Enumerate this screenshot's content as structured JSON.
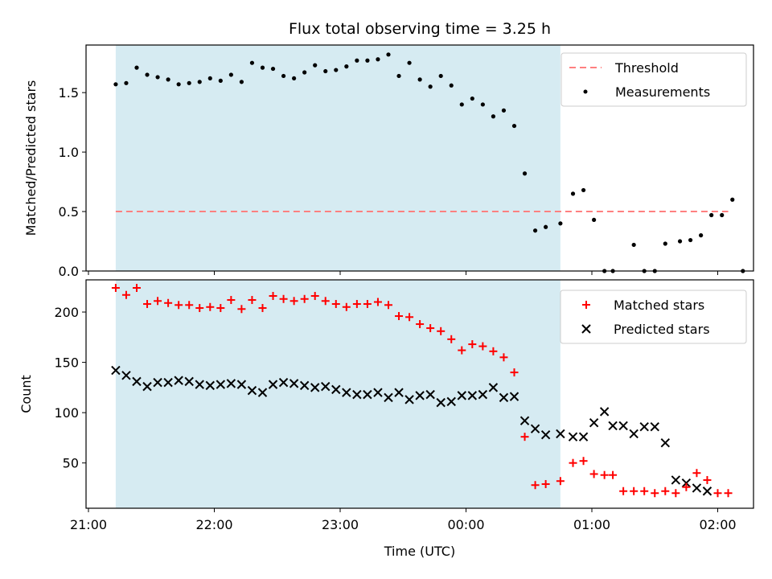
{
  "chart_data": [
    {
      "type": "scatter",
      "title": "Flux total observing time = 3.25 h",
      "xlabel": "",
      "ylabel": "Matched/Predicted stars",
      "ylim": [
        0,
        1.9
      ],
      "yticks": [
        0.0,
        0.5,
        1.0,
        1.5
      ],
      "ytick_labels": [
        "0.0",
        "0.5",
        "1.0",
        "1.5"
      ],
      "x_tick_labels": [],
      "legend": {
        "placement": "top-right"
      },
      "shaded_span": {
        "from": "21:13",
        "to": "00:45",
        "color": "#add8e6"
      },
      "threshold": {
        "name": "Threshold",
        "y": 0.5,
        "from": "21:13",
        "to": "02:05",
        "color": "#ff8080"
      },
      "series": [
        {
          "name": "Measurements",
          "color": "#000000",
          "x": [
            "21:13",
            "21:18",
            "21:23",
            "21:28",
            "21:33",
            "21:38",
            "21:43",
            "21:48",
            "21:53",
            "21:58",
            "22:03",
            "22:08",
            "22:13",
            "22:18",
            "22:23",
            "22:28",
            "22:33",
            "22:38",
            "22:43",
            "22:48",
            "22:53",
            "22:58",
            "23:03",
            "23:08",
            "23:13",
            "23:18",
            "23:23",
            "23:28",
            "23:33",
            "23:38",
            "23:43",
            "23:48",
            "23:53",
            "23:58",
            "00:03",
            "00:08",
            "00:13",
            "00:18",
            "00:23",
            "00:28",
            "00:33",
            "00:38",
            "00:45",
            "00:51",
            "00:56",
            "01:01",
            "01:06",
            "01:10",
            "01:20",
            "01:25",
            "01:30",
            "01:35",
            "01:42",
            "01:47",
            "01:52",
            "01:57",
            "02:02",
            "02:07",
            "02:12",
            "02:17",
            "02:22"
          ],
          "values": [
            1.57,
            1.58,
            1.71,
            1.65,
            1.63,
            1.61,
            1.57,
            1.58,
            1.59,
            1.62,
            1.6,
            1.65,
            1.59,
            1.75,
            1.71,
            1.7,
            1.64,
            1.62,
            1.67,
            1.73,
            1.68,
            1.69,
            1.72,
            1.77,
            1.77,
            1.78,
            1.82,
            1.64,
            1.75,
            1.61,
            1.55,
            1.64,
            1.56,
            1.4,
            1.45,
            1.4,
            1.3,
            1.35,
            1.22,
            0.82,
            0.34,
            0.37,
            0.4,
            0.65,
            0.68,
            0.43,
            0.0,
            0.0,
            0.22,
            0.0,
            0.0,
            0.23,
            0.25,
            0.26,
            0.3,
            0.47,
            0.47,
            0.6,
            0.0,
            0.0,
            0.0
          ]
        }
      ]
    },
    {
      "type": "scatter",
      "title": "",
      "xlabel": "Time (UTC)",
      "ylabel": "Count",
      "ylim": [
        5,
        232
      ],
      "yticks": [
        50,
        100,
        150,
        200
      ],
      "ytick_labels": [
        "50",
        "100",
        "150",
        "200"
      ],
      "x_tick_labels": [
        "21:00",
        "22:00",
        "23:00",
        "00:00",
        "01:00",
        "02:00"
      ],
      "legend": {
        "placement": "top-right"
      },
      "shaded_span": {
        "from": "21:13",
        "to": "00:45",
        "color": "#add8e6"
      },
      "series": [
        {
          "name": "Matched stars",
          "color": "#ff0000",
          "marker": "plus",
          "x": [
            "21:13",
            "21:18",
            "21:23",
            "21:28",
            "21:33",
            "21:38",
            "21:43",
            "21:48",
            "21:53",
            "21:58",
            "22:03",
            "22:08",
            "22:13",
            "22:18",
            "22:23",
            "22:28",
            "22:33",
            "22:38",
            "22:43",
            "22:48",
            "22:53",
            "22:58",
            "23:03",
            "23:08",
            "23:13",
            "23:18",
            "23:23",
            "23:28",
            "23:33",
            "23:38",
            "23:43",
            "23:48",
            "23:53",
            "23:58",
            "00:03",
            "00:08",
            "00:13",
            "00:18",
            "00:23",
            "00:28",
            "00:33",
            "00:38",
            "00:45",
            "00:51",
            "00:56",
            "01:01",
            "01:06",
            "01:10",
            "01:15",
            "01:20",
            "01:25",
            "01:30",
            "01:35",
            "01:40",
            "01:45",
            "01:50",
            "01:55",
            "02:00",
            "02:05"
          ],
          "values": [
            224,
            217,
            224,
            208,
            211,
            209,
            207,
            207,
            204,
            205,
            204,
            212,
            203,
            212,
            204,
            216,
            213,
            211,
            213,
            216,
            211,
            208,
            205,
            208,
            208,
            210,
            207,
            196,
            195,
            188,
            184,
            181,
            173,
            162,
            168,
            166,
            161,
            155,
            140,
            76,
            28,
            29,
            32,
            50,
            52,
            39,
            38,
            38,
            22,
            22,
            22,
            20,
            22,
            20,
            26,
            40,
            33,
            20,
            20
          ]
        },
        {
          "name": "Predicted stars",
          "color": "#000000",
          "marker": "x",
          "x": [
            "21:13",
            "21:18",
            "21:23",
            "21:28",
            "21:33",
            "21:38",
            "21:43",
            "21:48",
            "21:53",
            "21:58",
            "22:03",
            "22:08",
            "22:13",
            "22:18",
            "22:23",
            "22:28",
            "22:33",
            "22:38",
            "22:43",
            "22:48",
            "22:53",
            "22:58",
            "23:03",
            "23:08",
            "23:13",
            "23:18",
            "23:23",
            "23:28",
            "23:33",
            "23:38",
            "23:43",
            "23:48",
            "23:53",
            "23:58",
            "00:03",
            "00:08",
            "00:13",
            "00:18",
            "00:23",
            "00:28",
            "00:33",
            "00:38",
            "00:45",
            "00:51",
            "00:56",
            "01:01",
            "01:06",
            "01:10",
            "01:15",
            "01:20",
            "01:25",
            "01:30",
            "01:35",
            "01:40",
            "01:45",
            "01:50",
            "01:55"
          ],
          "values": [
            142,
            137,
            131,
            126,
            130,
            130,
            132,
            131,
            128,
            127,
            128,
            129,
            128,
            122,
            120,
            128,
            130,
            129,
            127,
            125,
            126,
            123,
            120,
            118,
            118,
            120,
            115,
            120,
            113,
            117,
            118,
            110,
            111,
            117,
            117,
            118,
            125,
            115,
            116,
            92,
            84,
            78,
            79,
            76,
            76,
            90,
            101,
            87,
            87,
            79,
            86,
            86,
            70,
            33,
            30,
            25,
            22
          ]
        }
      ]
    }
  ]
}
